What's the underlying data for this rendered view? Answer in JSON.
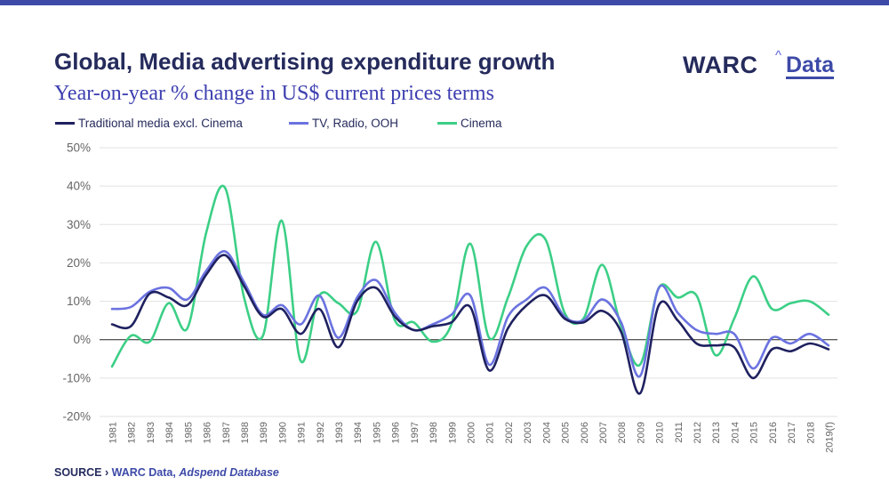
{
  "header": {
    "title": "Global, Media advertising expenditure growth",
    "subtitle": "Year-on-year % change in US$ current prices terms"
  },
  "logo": {
    "brand": "WARC",
    "caret": "^",
    "product": "Data"
  },
  "source": {
    "label": "SOURCE ›",
    "name": "WARC Data,",
    "database": "Adspend Database"
  },
  "colors": {
    "traditional": "#1f2160",
    "tv_radio_ooh": "#6b73e0",
    "cinema": "#3ccf86",
    "accent": "#3d4aa8"
  },
  "chart_data": {
    "type": "line",
    "title": "Global, Media advertising expenditure growth",
    "subtitle": "Year-on-year % change in US$ current prices terms",
    "xlabel": "",
    "ylabel": "",
    "ylim": [
      -20,
      50
    ],
    "yticks": [
      -20,
      -10,
      0,
      10,
      20,
      30,
      40,
      50
    ],
    "ytick_labels": [
      "-20%",
      "-10%",
      "0%",
      "10%",
      "20%",
      "30%",
      "40%",
      "50%"
    ],
    "grid": true,
    "legend_position": "top-left",
    "categories": [
      "1981",
      "1982",
      "1983",
      "1984",
      "1985",
      "1986",
      "1987",
      "1988",
      "1989",
      "1990",
      "1991",
      "1992",
      "1993",
      "1994",
      "1995",
      "1996",
      "1997",
      "1998",
      "1999",
      "2000",
      "2001",
      "2002",
      "2003",
      "2004",
      "2005",
      "2006",
      "2007",
      "2008",
      "2009",
      "2010",
      "2011",
      "2012",
      "2013",
      "2014",
      "2015",
      "2016",
      "2017",
      "2018",
      "2019(f)"
    ],
    "series": [
      {
        "name": "Traditional media excl. Cinema",
        "color": "#1f2160",
        "values": [
          4,
          3.5,
          12,
          11,
          9,
          17,
          22,
          14,
          6,
          8,
          1.5,
          8,
          -2,
          10,
          13.5,
          6,
          2.5,
          3.5,
          4.5,
          8.5,
          -8,
          3,
          9,
          11.5,
          5.5,
          4.5,
          7.5,
          2,
          -14,
          9,
          5,
          -1,
          -1.5,
          -2,
          -10,
          -2.5,
          -3,
          -1,
          -2.5
        ]
      },
      {
        "name": "TV, Radio, OOH",
        "color": "#6b73e0",
        "values": [
          8,
          8.5,
          12.5,
          13.5,
          10.5,
          18,
          23,
          15,
          6.5,
          9,
          4,
          11.5,
          0.5,
          11,
          15.5,
          7,
          2.5,
          4,
          6.5,
          11.5,
          -6.5,
          6,
          10.5,
          13.5,
          6,
          5,
          10.5,
          4.5,
          -9.5,
          13.5,
          7,
          2.5,
          1.5,
          1.5,
          -7.5,
          0.5,
          -1,
          1.5,
          -1.5
        ]
      },
      {
        "name": "Cinema",
        "color": "#3ccf86",
        "values": [
          -7,
          1,
          -0.5,
          9.5,
          3,
          28,
          39.5,
          11,
          1,
          31,
          -5.5,
          11.5,
          9.5,
          7.5,
          25.5,
          5,
          4.5,
          -0.5,
          4,
          25,
          0.5,
          11,
          24.5,
          26,
          7,
          5.5,
          19.5,
          3.5,
          -6.5,
          13.5,
          11,
          11.5,
          -4,
          5.5,
          16.5,
          8,
          9.5,
          10,
          6.5
        ]
      }
    ]
  }
}
